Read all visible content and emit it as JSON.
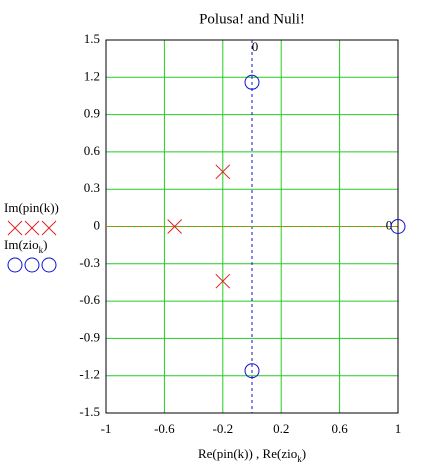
{
  "chart_data": {
    "type": "scatter",
    "title": "Polusa! and Nuli!",
    "x_label": [
      "Re(pin(k)) , Re(zio",
      "k",
      ")"
    ],
    "series": [
      {
        "name": [
          "Im(pin(k))"
        ],
        "color": "#e02020",
        "marker": "x",
        "x": [
          -0.53,
          -0.2,
          -0.2
        ],
        "values": [
          0,
          0.44,
          -0.44
        ]
      },
      {
        "name": [
          "Im(zio",
          "k",
          ")"
        ],
        "color": "#1010d0",
        "marker": "circle",
        "x": [
          0,
          0,
          1
        ],
        "values": [
          1.16,
          -1.16,
          0
        ]
      }
    ],
    "xlim": [
      -1,
      1
    ],
    "xticks": [
      -1,
      -0.6,
      -0.2,
      0.2,
      0.6,
      1
    ],
    "ylim": [
      -1.5,
      1.5
    ],
    "yticks": [
      1.5,
      1.2,
      0.9,
      0.6,
      0.3,
      0,
      -0.3,
      -0.6,
      -0.9,
      -1.2,
      -1.5
    ],
    "grid": true,
    "grid_color": "#22cc22",
    "markers": {
      "x": 0,
      "y": 0
    }
  }
}
